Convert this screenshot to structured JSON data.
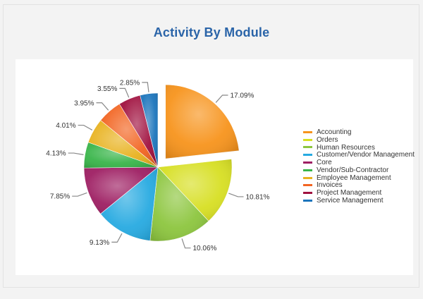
{
  "title": "Activity By Module",
  "chart_data": {
    "type": "pie",
    "title": "Activity By Module",
    "legend_position": "right",
    "slices": [
      {
        "name": "Accounting",
        "label": "17.09%",
        "color": "#f7941d",
        "exploded": true
      },
      {
        "name": "Orders",
        "label": "10.81%",
        "color": "#d7df23"
      },
      {
        "name": "Human Resources",
        "label": "10.06%",
        "color": "#8dc63f"
      },
      {
        "name": "Customer/Vendor Management",
        "label": "9.13%",
        "color": "#27aae1"
      },
      {
        "name": "Core",
        "label": "7.85%",
        "color": "#9e1f63"
      },
      {
        "name": "Vendor/Sub-Contractor",
        "label": "4.13%",
        "color": "#39b54a"
      },
      {
        "name": "Employee Management",
        "label": "4.01%",
        "color": "#e8b21f"
      },
      {
        "name": "Invoices",
        "label": "3.95%",
        "color": "#f26522"
      },
      {
        "name": "Project Management",
        "label": "3.55%",
        "color": "#a0113f"
      },
      {
        "name": "Service Management",
        "label": "2.85%",
        "color": "#1c75bc"
      }
    ]
  }
}
